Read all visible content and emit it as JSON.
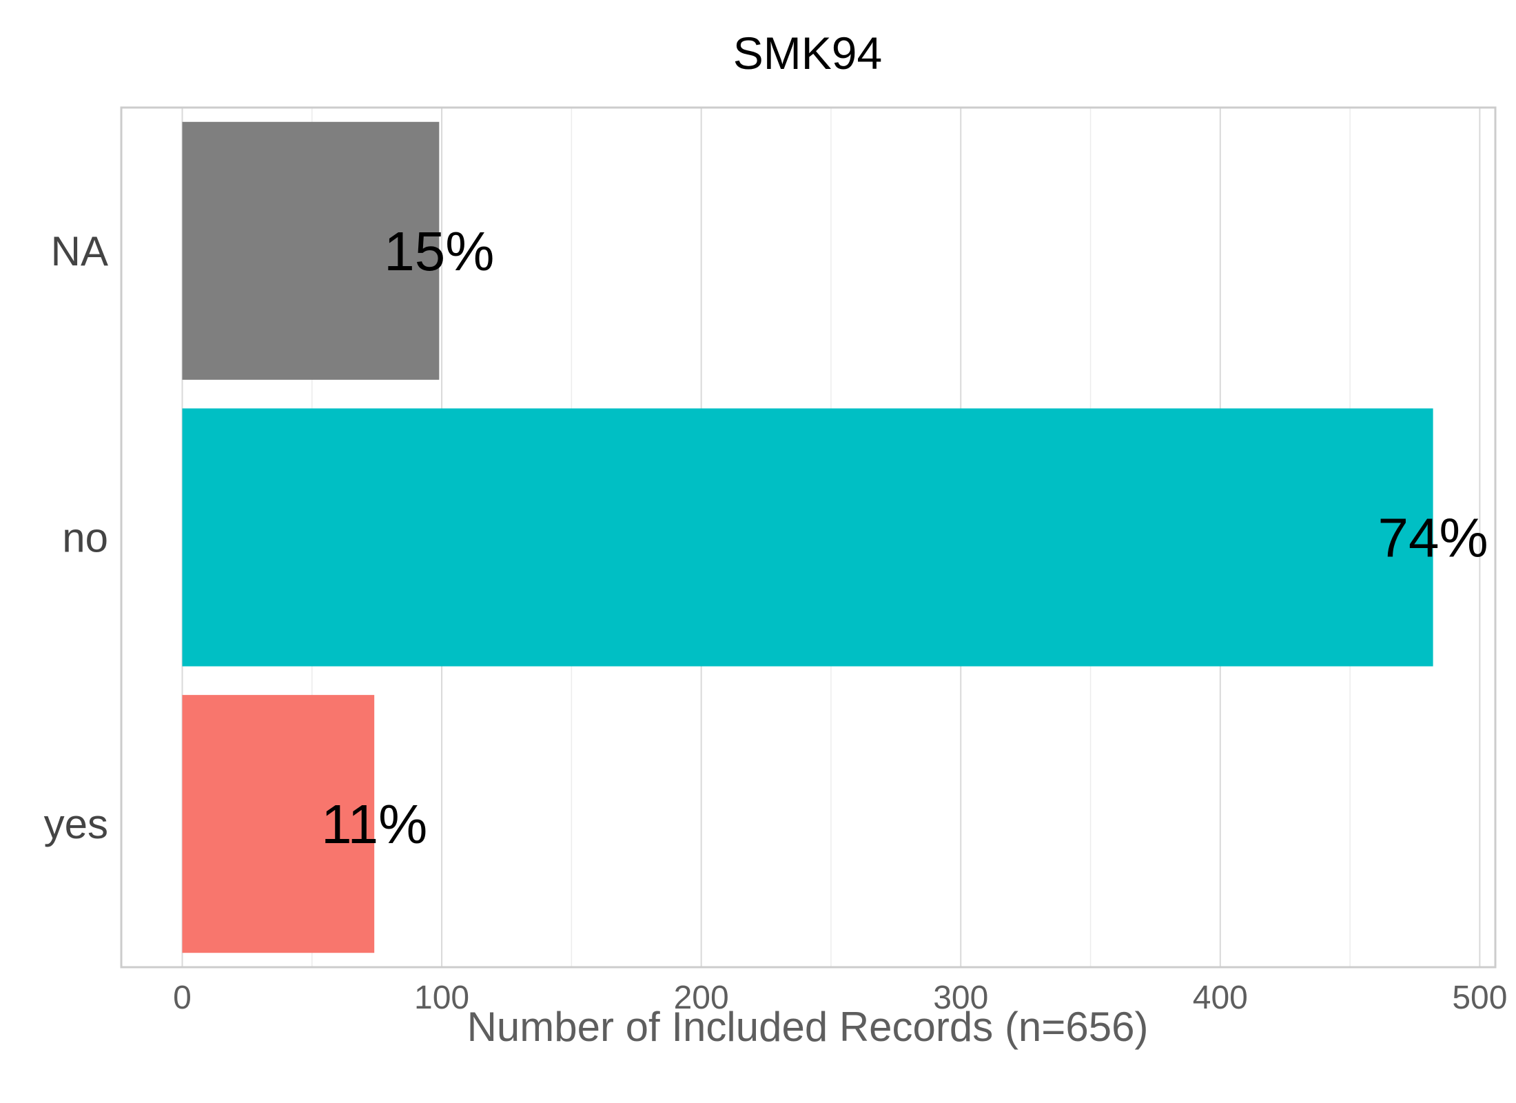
{
  "chart_data": {
    "type": "bar",
    "orientation": "horizontal",
    "title": "SMK94",
    "xlabel": "Number of Included Records (n=656)",
    "ylabel": "",
    "categories": [
      "NA",
      "no",
      "yes"
    ],
    "values": [
      99,
      482,
      74
    ],
    "value_labels": [
      "15%",
      "74%",
      "11%"
    ],
    "colors": [
      "#7f7f7f",
      "#00bfc4",
      "#f8766d"
    ],
    "xlim": [
      -23.5,
      506
    ],
    "xticks": [
      0,
      100,
      200,
      300,
      400,
      500
    ],
    "xtick_labels": [
      "0",
      "100",
      "200",
      "300",
      "400",
      "500"
    ],
    "grid": true,
    "legend": "none"
  }
}
